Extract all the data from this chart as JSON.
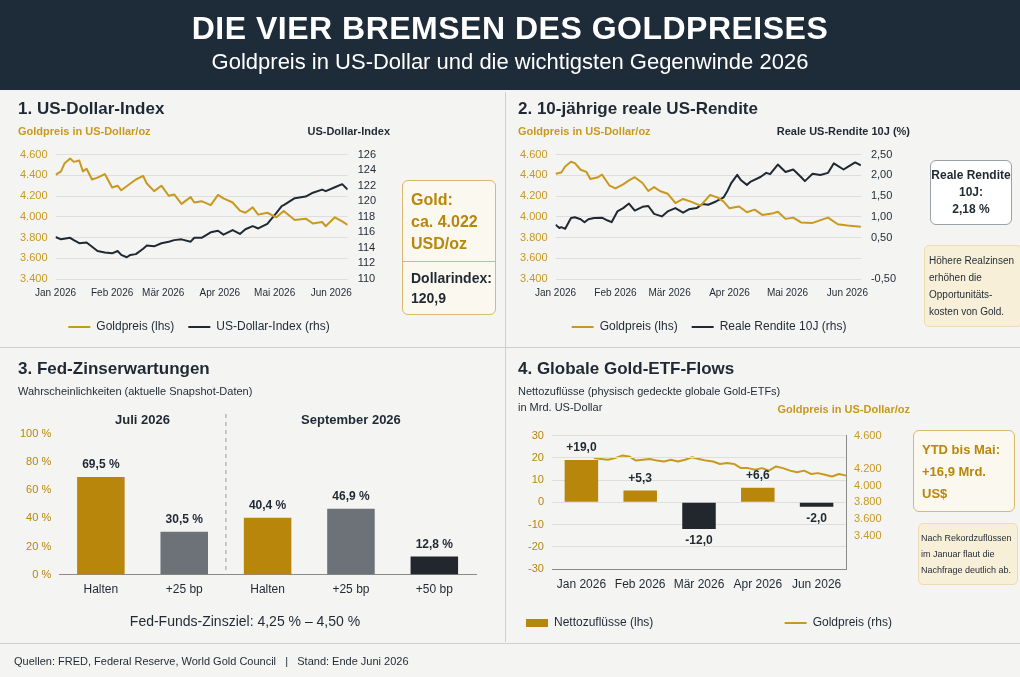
{
  "chart_data": [
    {
      "type": "line",
      "title": "1. US-Dollar-Index",
      "ylabel": "Goldpreis in US-Dollar/oz",
      "y2label": "US-Dollar-Index",
      "xlim": [
        "2026-01-01",
        "2026-06-10"
      ],
      "xticks": [
        {
          "value": "2026-01-01",
          "label": "Jan 2026"
        },
        {
          "value": "2026-02-01",
          "label": "Feb 2026"
        },
        {
          "value": "2026-03-01",
          "label": "Mär 2026"
        },
        {
          "value": "2026-04-01",
          "label": "Apr 2026"
        },
        {
          "value": "2026-05-01",
          "label": "Mai 2026"
        },
        {
          "value": "2026-06-01",
          "label": "Jun 2026"
        }
      ],
      "ylim": [
        3400,
        4600
      ],
      "yticks": [
        {
          "value": 3400,
          "label": "3.400"
        },
        {
          "value": 3600,
          "label": "3.600"
        },
        {
          "value": 3800,
          "label": "3.800"
        },
        {
          "value": 4000,
          "label": "4.000"
        },
        {
          "value": 4200,
          "label": "4.200"
        },
        {
          "value": 4400,
          "label": "4.400"
        },
        {
          "value": 4600,
          "label": "4.600"
        }
      ],
      "y2lim": [
        110,
        126
      ],
      "y2ticks": [
        110,
        112,
        114,
        116,
        118,
        120,
        122,
        124,
        126
      ],
      "grid": "y",
      "legend": "bottom",
      "marker": "none",
      "series": [
        {
          "name": "Goldpreis (lhs)",
          "color": "#c8991e",
          "x": [
            "2026-01-01",
            "2026-01-04",
            "2026-01-06",
            "2026-01-09",
            "2026-01-11",
            "2026-01-14",
            "2026-01-16",
            "2026-01-18",
            "2026-01-21",
            "2026-01-24",
            "2026-01-28",
            "2026-02-01",
            "2026-02-04",
            "2026-02-06",
            "2026-02-11",
            "2026-02-14",
            "2026-02-18",
            "2026-02-20",
            "2026-02-24",
            "2026-02-28",
            "2026-03-04",
            "2026-03-07",
            "2026-03-11",
            "2026-03-16",
            "2026-03-18",
            "2026-03-22",
            "2026-03-27",
            "2026-03-31",
            "2026-04-03",
            "2026-04-08",
            "2026-04-12",
            "2026-04-15",
            "2026-04-19",
            "2026-04-22",
            "2026-04-27",
            "2026-05-02",
            "2026-05-06",
            "2026-05-12",
            "2026-05-18",
            "2026-05-22",
            "2026-05-27",
            "2026-05-29",
            "2026-06-03",
            "2026-06-07",
            "2026-06-10"
          ],
          "values": [
            4404,
            4438,
            4517,
            4563,
            4530,
            4543,
            4438,
            4464,
            4360,
            4378,
            4412,
            4282,
            4300,
            4256,
            4321,
            4360,
            4394,
            4321,
            4248,
            4300,
            4203,
            4216,
            4125,
            4190,
            4138,
            4151,
            4112,
            4211,
            4177,
            4138,
            4060,
            4039,
            4091,
            4021,
            4039,
            3995,
            4055,
            3969,
            3982,
            3935,
            3950,
            3909,
            3995,
            3956,
            3922
          ]
        },
        {
          "name": "US-Dollar-Index (rhs)",
          "color": "#1f2933",
          "axis": "y2",
          "x": [
            "2026-01-01",
            "2026-01-04",
            "2026-01-09",
            "2026-01-11",
            "2026-01-14",
            "2026-01-18",
            "2026-01-24",
            "2026-01-28",
            "2026-02-01",
            "2026-02-04",
            "2026-02-06",
            "2026-02-09",
            "2026-02-11",
            "2026-02-14",
            "2026-02-18",
            "2026-02-20",
            "2026-02-24",
            "2026-02-28",
            "2026-03-04",
            "2026-03-07",
            "2026-03-11",
            "2026-03-16",
            "2026-03-18",
            "2026-03-22",
            "2026-03-27",
            "2026-03-31",
            "2026-04-03",
            "2026-04-08",
            "2026-04-12",
            "2026-04-15",
            "2026-04-19",
            "2026-04-22",
            "2026-04-27",
            "2026-05-02",
            "2026-05-05",
            "2026-05-06",
            "2026-05-12",
            "2026-05-18",
            "2026-05-22",
            "2026-05-27",
            "2026-05-29",
            "2026-06-03",
            "2026-06-07",
            "2026-06-10"
          ],
          "values": [
            115.4,
            115.1,
            115.3,
            115.0,
            114.6,
            114.7,
            113.6,
            113.4,
            113.3,
            113.6,
            113.1,
            112.8,
            113.1,
            113.2,
            113.9,
            114.3,
            114.2,
            114.6,
            114.8,
            115.0,
            115.1,
            114.8,
            115.3,
            115.3,
            116.0,
            116.2,
            115.7,
            116.3,
            115.8,
            116.4,
            116.8,
            116.5,
            117.1,
            118.5,
            119.4,
            119.5,
            120.4,
            120.6,
            121.1,
            121.5,
            121.3,
            121.8,
            122.2,
            121.5
          ]
        }
      ],
      "annotations": [
        "DIE VIER BREMSEN DES GOLDPREISES",
        "Goldpreis in US-Dollar und die wichtigsten Gegenwinde 2026",
        "Gold:\nca. 4.022\nUSD/oz",
        "Dollarindex:\n120,9"
      ]
    },
    {
      "type": "line",
      "title": "2. 10-jährige reale US-Rendite",
      "ylabel": "Goldpreis in US-Dollar/oz",
      "y2label": "Reale US-Rendite 10J (%)",
      "xlim": [
        "2026-01-01",
        "2026-06-08"
      ],
      "xticks": [
        {
          "value": "2026-01-01",
          "label": "Jan 2026"
        },
        {
          "value": "2026-02-01",
          "label": "Feb 2026"
        },
        {
          "value": "2026-03-01",
          "label": "Mär 2026"
        },
        {
          "value": "2026-04-01",
          "label": "Apr 2026"
        },
        {
          "value": "2026-05-01",
          "label": "Mai 2026"
        },
        {
          "value": "2026-06-01",
          "label": "Jun 2026"
        }
      ],
      "ylim": [
        3400,
        4600
      ],
      "yticks": [
        {
          "value": 3400,
          "label": "3.400"
        },
        {
          "value": 3600,
          "label": "3.600"
        },
        {
          "value": 3800,
          "label": "3.800"
        },
        {
          "value": 4000,
          "label": "4.000"
        },
        {
          "value": 4200,
          "label": "4.200"
        },
        {
          "value": 4400,
          "label": "4.400"
        },
        {
          "value": 4600,
          "label": "4.600"
        }
      ],
      "y2lim": [
        -0.5,
        2.5
      ],
      "y2ticks": [
        {
          "value": -0.5,
          "label": "-0,50"
        },
        {
          "value": 0.5,
          "label": "0,50"
        },
        {
          "value": 1,
          "label": "1,00"
        },
        {
          "value": 1.5,
          "label": "1,50"
        },
        {
          "value": 2,
          "label": "2,00"
        },
        {
          "value": 2.5,
          "label": "2,50"
        }
      ],
      "grid": "y",
      "legend": "bottom",
      "marker": "none",
      "series": [
        {
          "name": "Goldpreis (lhs)",
          "color": "#c8991e",
          "x": [
            "2026-01-01",
            "2026-01-04",
            "2026-01-06",
            "2026-01-09",
            "2026-01-11",
            "2026-01-14",
            "2026-01-17",
            "2026-01-19",
            "2026-01-23",
            "2026-01-25",
            "2026-01-29",
            "2026-02-01",
            "2026-02-05",
            "2026-02-08",
            "2026-02-11",
            "2026-02-15",
            "2026-02-18",
            "2026-02-21",
            "2026-02-24",
            "2026-02-28",
            "2026-03-04",
            "2026-03-08",
            "2026-03-12",
            "2026-03-17",
            "2026-03-22",
            "2026-03-26",
            "2026-03-29",
            "2026-04-01",
            "2026-04-06",
            "2026-04-10",
            "2026-04-14",
            "2026-04-18",
            "2026-04-23",
            "2026-04-26",
            "2026-04-30",
            "2026-05-04",
            "2026-05-08",
            "2026-05-14",
            "2026-05-20",
            "2026-05-22",
            "2026-05-27",
            "2026-06-01",
            "2026-06-08"
          ],
          "values": [
            4415,
            4428,
            4485,
            4531,
            4518,
            4454,
            4433,
            4364,
            4382,
            4408,
            4300,
            4274,
            4313,
            4351,
            4382,
            4326,
            4249,
            4287,
            4249,
            4223,
            4133,
            4172,
            4146,
            4108,
            4210,
            4185,
            4146,
            4082,
            4100,
            4044,
            4069,
            4018,
            4031,
            4049,
            3980,
            3992,
            3946,
            3941,
            3980,
            3992,
            3928,
            3915,
            3903
          ]
        },
        {
          "name": "Reale Rendite 10J (rhs)",
          "color": "#1f2933",
          "axis": "y2",
          "x": [
            "2026-01-01",
            "2026-01-03",
            "2026-01-04",
            "2026-01-06",
            "2026-01-09",
            "2026-01-11",
            "2026-01-14",
            "2026-01-16",
            "2026-01-18",
            "2026-01-21",
            "2026-01-25",
            "2026-01-28",
            "2026-01-30",
            "2026-02-02",
            "2026-02-05",
            "2026-02-08",
            "2026-02-11",
            "2026-02-15",
            "2026-02-18",
            "2026-02-21",
            "2026-02-25",
            "2026-02-28",
            "2026-03-04",
            "2026-03-08",
            "2026-03-11",
            "2026-03-15",
            "2026-03-18",
            "2026-03-21",
            "2026-03-25",
            "2026-03-29",
            "2026-03-31",
            "2026-04-02",
            "2026-04-05",
            "2026-04-07",
            "2026-04-10",
            "2026-04-12",
            "2026-04-17",
            "2026-04-20",
            "2026-04-22",
            "2026-04-26",
            "2026-04-30",
            "2026-05-04",
            "2026-05-08",
            "2026-05-10",
            "2026-05-14",
            "2026-05-18",
            "2026-05-22",
            "2026-05-25",
            "2026-05-30",
            "2026-06-01",
            "2026-06-05",
            "2026-06-08"
          ],
          "values": [
            0.81,
            0.73,
            0.75,
            0.71,
            0.97,
            0.99,
            0.94,
            0.87,
            0.94,
            0.97,
            0.98,
            0.91,
            0.87,
            1.13,
            1.21,
            1.32,
            1.15,
            1.24,
            1.26,
            1.07,
            1.01,
            1.13,
            1.21,
            1.1,
            1.18,
            1.21,
            1.31,
            1.29,
            1.37,
            1.47,
            1.63,
            1.82,
            2.01,
            1.88,
            1.77,
            1.85,
            1.96,
            2.06,
            2.03,
            2.26,
            2.08,
            2.14,
            1.96,
            1.86,
            2.04,
            2.01,
            2.06,
            2.29,
            2.14,
            2.2,
            2.31,
            2.24
          ]
        }
      ],
      "annotations": [
        "Reale Rendite\n10J:\n2,18 %",
        "Höhere Realzinsen\nerhöhen die\nOpportunitäts-\nkosten von Gold."
      ]
    },
    {
      "type": "bar",
      "title": "3. Fed-Zinserwartungen",
      "subtitle": "Wahrscheinlichkeiten (aktuelle Snapshot-Daten)",
      "categories": [
        "Halten",
        "+25 bp",
        "Halten",
        "+25 bp",
        "+50 bp"
      ],
      "values": [
        69.5,
        30.5,
        40.4,
        46.9,
        12.8
      ],
      "colors": [
        "#b8860b",
        "#6c7278",
        "#b8860b",
        "#6c7278",
        "#22272d"
      ],
      "value_labels": [
        "69,5 %",
        "30,5 %",
        "40,4 %",
        "46,9 %",
        "12,8 %"
      ],
      "ylim": [
        0,
        100
      ],
      "yticks": [
        {
          "value": 0,
          "label": "0 %"
        },
        {
          "value": 20,
          "label": "20 %"
        },
        {
          "value": 40,
          "label": "40 %"
        },
        {
          "value": 60,
          "label": "60 %"
        },
        {
          "value": 80,
          "label": "80 %"
        },
        {
          "value": 100,
          "label": "100 %"
        }
      ],
      "annotations": [
        "Juli 2026",
        "September 2026",
        "Fed-Funds-Zinsziel: 4,25 % – 4,50 %"
      ]
    },
    {
      "type": "bar",
      "title": "4. Globale Gold-ETF-Flows",
      "subtitle": "Nettozuflüsse (physisch gedeckte globale Gold-ETFs)\nin Mrd. US-Dollar",
      "categories": [
        "Jan 2026",
        "Feb 2026",
        "Mär 2026",
        "Apr 2026",
        "Jun 2026"
      ],
      "ylim": [
        -30,
        30
      ],
      "yticks": [
        -30,
        -20,
        -10,
        0,
        10,
        20,
        30
      ],
      "grid": "y",
      "legend": "bottom",
      "series": [
        {
          "name": "Nettozuflüsse (lhs)",
          "colors": [
            "#b8860b",
            "#b8860b",
            "#22272d",
            "#b8860b",
            "#22272d"
          ],
          "values": [
            19.0,
            5.3,
            -12.0,
            6.6,
            -2.0
          ],
          "value_labels": [
            "+19,0",
            "+5,3",
            "-12,0",
            "+6,6",
            "-2,0"
          ]
        }
      ],
      "annotations": [
        "YTD bis Mai:\n+16,9 Mrd. US$",
        "Nach Rekordzuflüssen\nim Januar flaut die\nNachfrage deutlich ab.",
        "Quellen: FRED, Federal Reserve, World Gold Council   |   Stand: Ende Juni 2026"
      ]
    },
    {
      "type": "line",
      "ylabel": "Goldpreis in US-Dollar/oz",
      "categories": [
        null,
        null,
        null,
        null,
        null,
        null,
        null,
        null,
        null,
        null,
        null,
        null,
        null,
        null,
        null,
        null,
        null,
        null,
        null,
        null,
        null,
        null,
        null,
        null,
        null,
        null,
        null,
        null,
        null,
        null,
        null,
        null,
        null,
        null,
        null,
        null,
        null
      ],
      "tick_labels": "y",
      "ylim": [
        3000,
        4600
      ],
      "yticks": [
        {
          "value": 3400,
          "label": "3.400"
        },
        {
          "value": 3600,
          "label": "3.600"
        },
        {
          "value": 3800,
          "label": "3.800"
        },
        {
          "value": 4000,
          "label": "4.000"
        },
        {
          "value": 4200,
          "label": "4.200"
        },
        {
          "value": 4600,
          "label": "4.600"
        }
      ],
      "legend": "bottom",
      "marker": "none",
      "series": [
        {
          "name": "Goldpreis (rhs)",
          "color": "#c8991e",
          "values": [
            4330,
            4320,
            4310,
            4330,
            4360,
            4350,
            4300,
            4310,
            4320,
            4300,
            4290,
            4310,
            4290,
            4310,
            4340,
            4320,
            4300,
            4290,
            4260,
            4270,
            4260,
            4210,
            4210,
            4190,
            4210,
            4180,
            4230,
            4210,
            4180,
            4160,
            4180,
            4140,
            4150,
            4130,
            4110,
            4140,
            4120
          ]
        }
      ]
    }
  ]
}
